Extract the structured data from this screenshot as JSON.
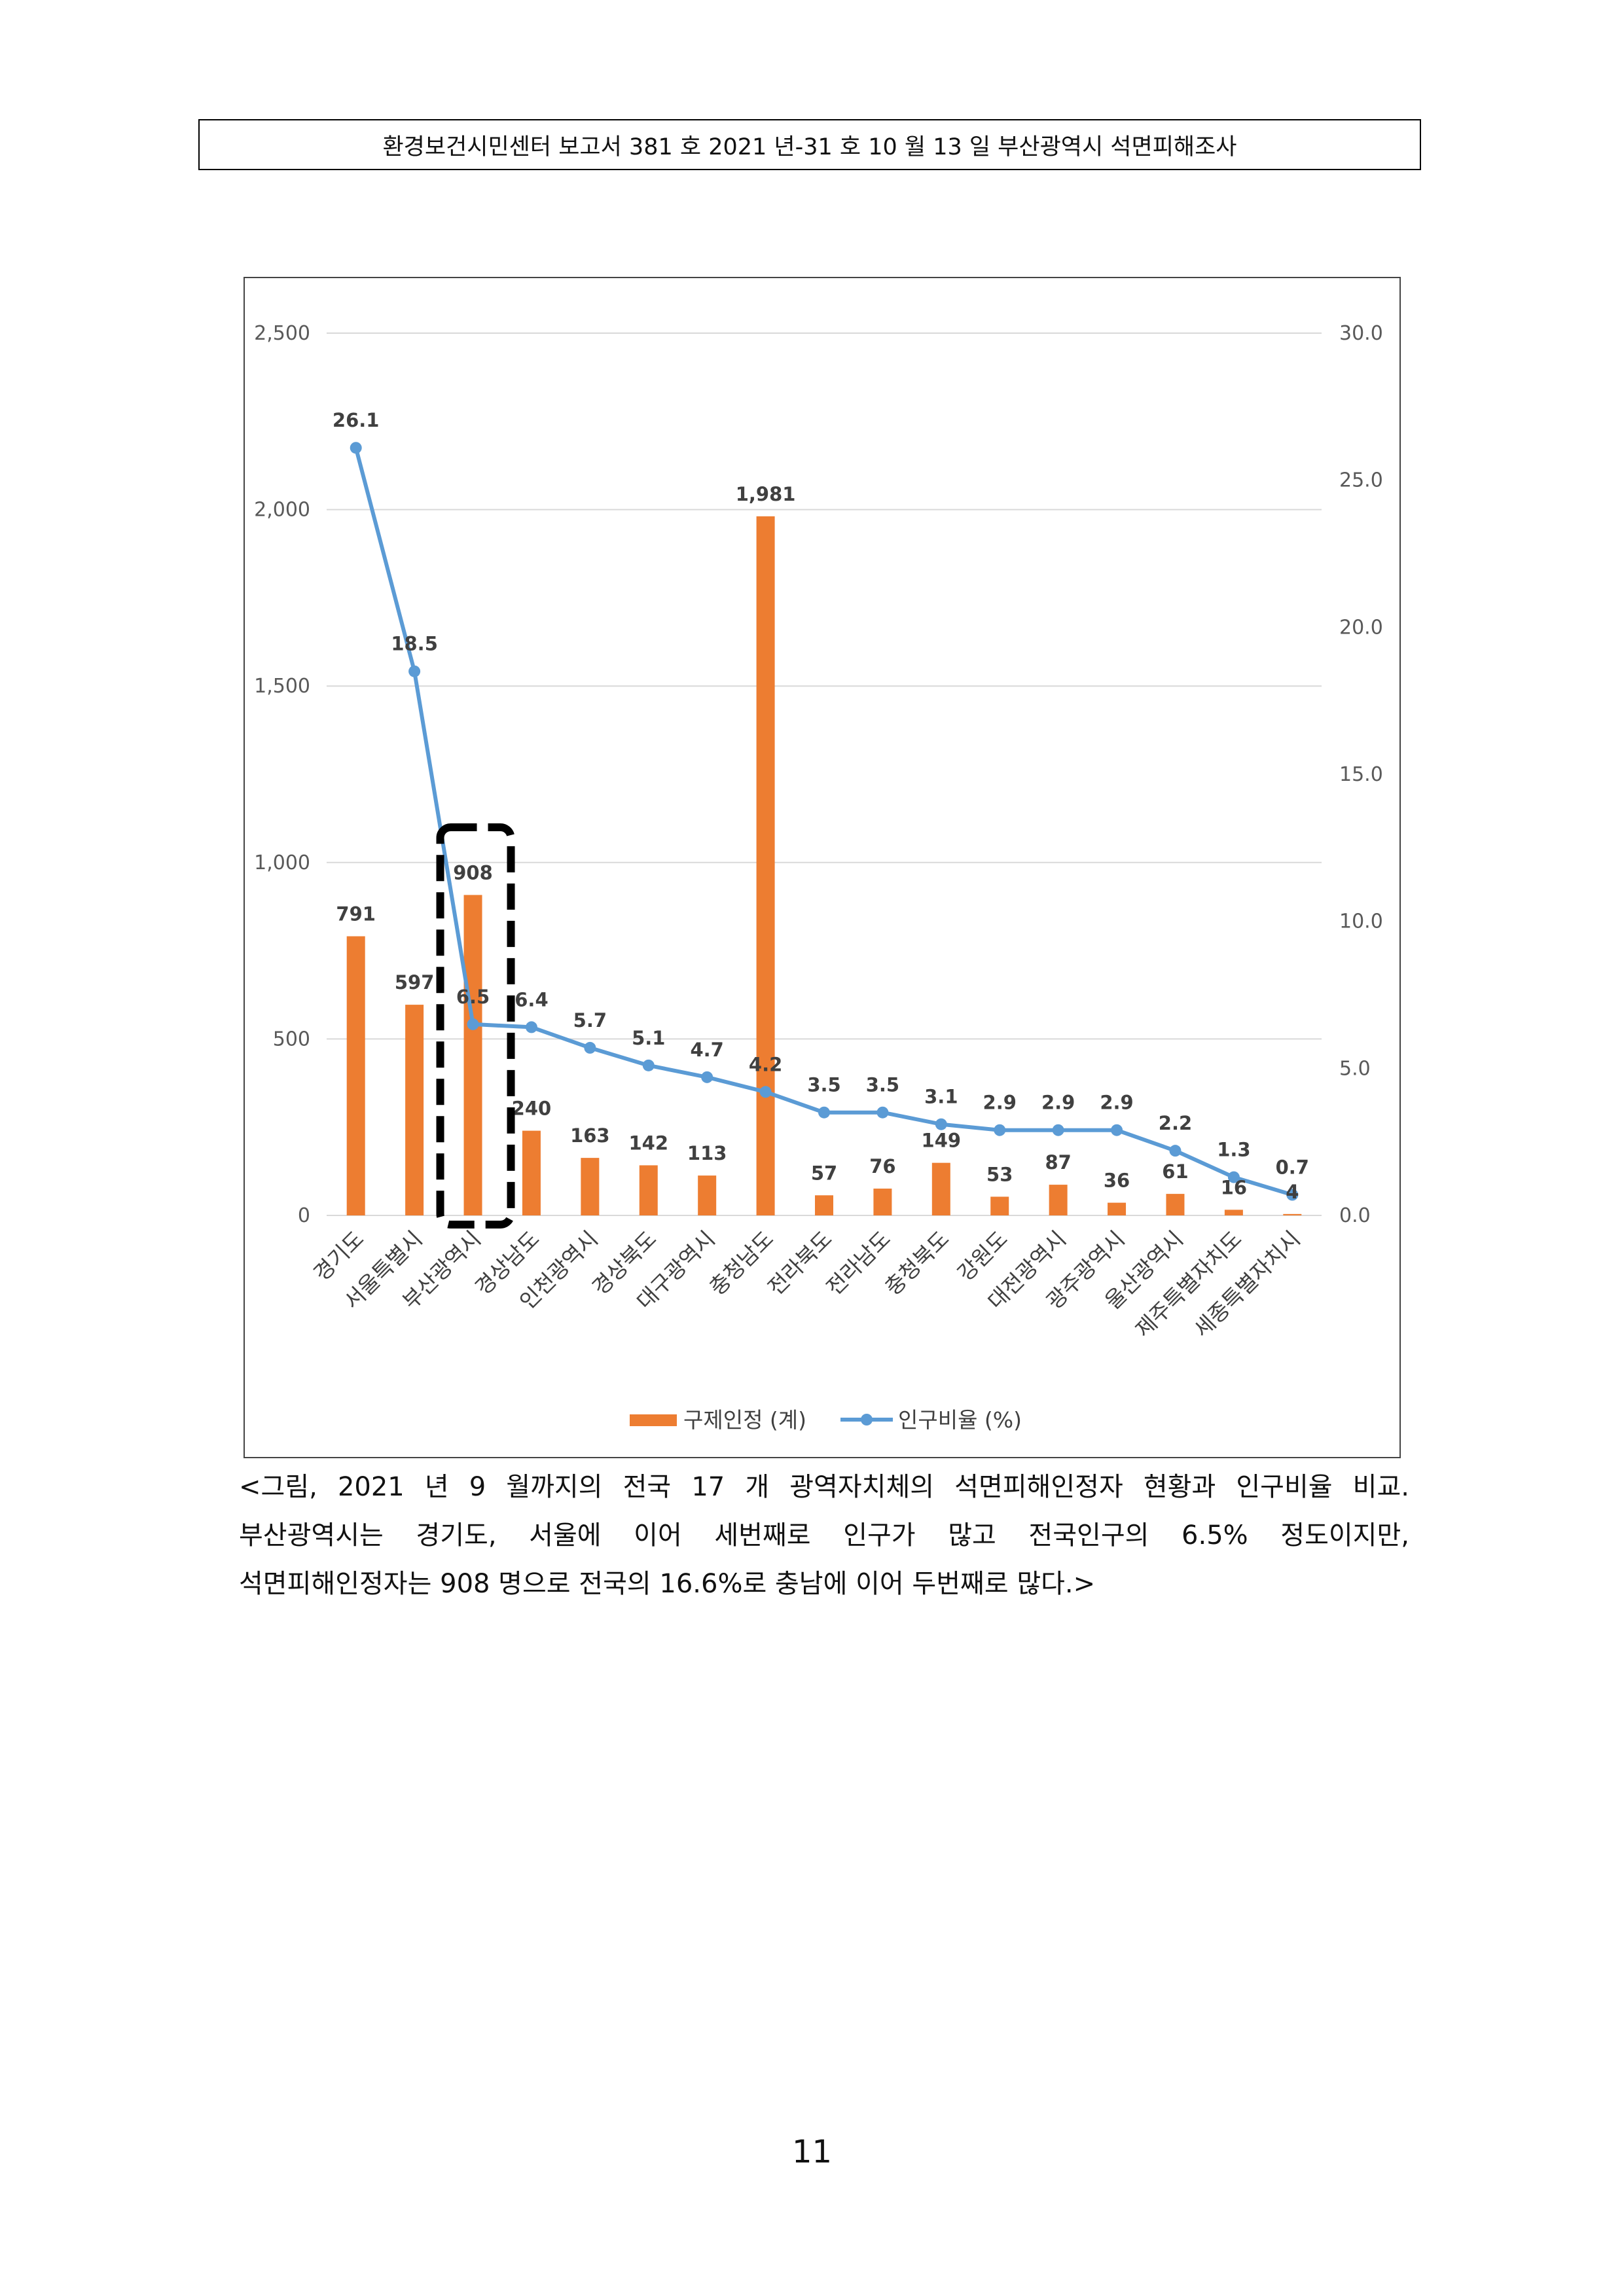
{
  "header": {
    "text": "환경보건시민센터 보고서 381 호 2021 년-31 호 10 월 13 일 부산광역시 석면피해조사"
  },
  "chart_data": {
    "type": "bar",
    "title": "",
    "xlabel": "",
    "ylabel": "",
    "categories": [
      "경기도",
      "서울특별시",
      "부산광역시",
      "경상남도",
      "인천광역시",
      "경상북도",
      "대구광역시",
      "충청남도",
      "전라북도",
      "전라남도",
      "충청북도",
      "강원도",
      "대전광역시",
      "광주광역시",
      "울산광역시",
      "제주특별자치도",
      "세종특별자치시"
    ],
    "series": [
      {
        "name": "구제인정 (계)",
        "type": "bar",
        "axis": "left",
        "color": "#ED7D31",
        "values": [
          791,
          597,
          908,
          240,
          163,
          142,
          113,
          1981,
          57,
          76,
          149,
          53,
          87,
          36,
          61,
          16,
          4
        ],
        "labels": [
          "791",
          "597",
          "908",
          "240",
          "163",
          "142",
          "113",
          "1,981",
          "57",
          "76",
          "149",
          "53",
          "87",
          "36",
          "61",
          "16",
          "4"
        ]
      },
      {
        "name": "인구비율 (%)",
        "type": "line",
        "axis": "right",
        "color": "#5B9BD5",
        "values": [
          26.1,
          18.5,
          6.5,
          6.4,
          5.7,
          5.1,
          4.7,
          4.2,
          3.5,
          3.5,
          3.1,
          2.9,
          2.9,
          2.9,
          2.2,
          1.3,
          0.7
        ],
        "labels": [
          "26.1",
          "18.5",
          "6.5",
          "6.4",
          "5.7",
          "5.1",
          "4.7",
          "4.2",
          "3.5",
          "3.5",
          "3.1",
          "2.9",
          "2.9",
          "2.9",
          "2.2",
          "1.3",
          "0.7"
        ]
      }
    ],
    "y_left": {
      "range": [
        0,
        2500
      ],
      "ticks": [
        "0",
        "500",
        "1,000",
        "1,500",
        "2,000",
        "2,500"
      ]
    },
    "y_right": {
      "range": [
        0,
        30
      ],
      "ticks": [
        "0.0",
        "5.0",
        "10.0",
        "15.0",
        "20.0",
        "25.0",
        "30.0"
      ]
    },
    "grid": "horizontal",
    "legend_position": "bottom",
    "highlight": {
      "category": "부산광역시",
      "style": "dashed-box"
    }
  },
  "caption": {
    "line1": "<그림, 2021 년 9 월까지의 전국 17 개 광역자치체의 석면피해인정자 현황과 인구비율 비교.",
    "line2": "부산광역시는 경기도, 서울에 이어 세번째로 인구가 많고 전국인구의 6.5% 정도이지만,",
    "line3": "석면피해인정자는 908 명으로 전국의 16.6%로 충남에 이어 두번째로 많다.>"
  },
  "page_number": "11"
}
